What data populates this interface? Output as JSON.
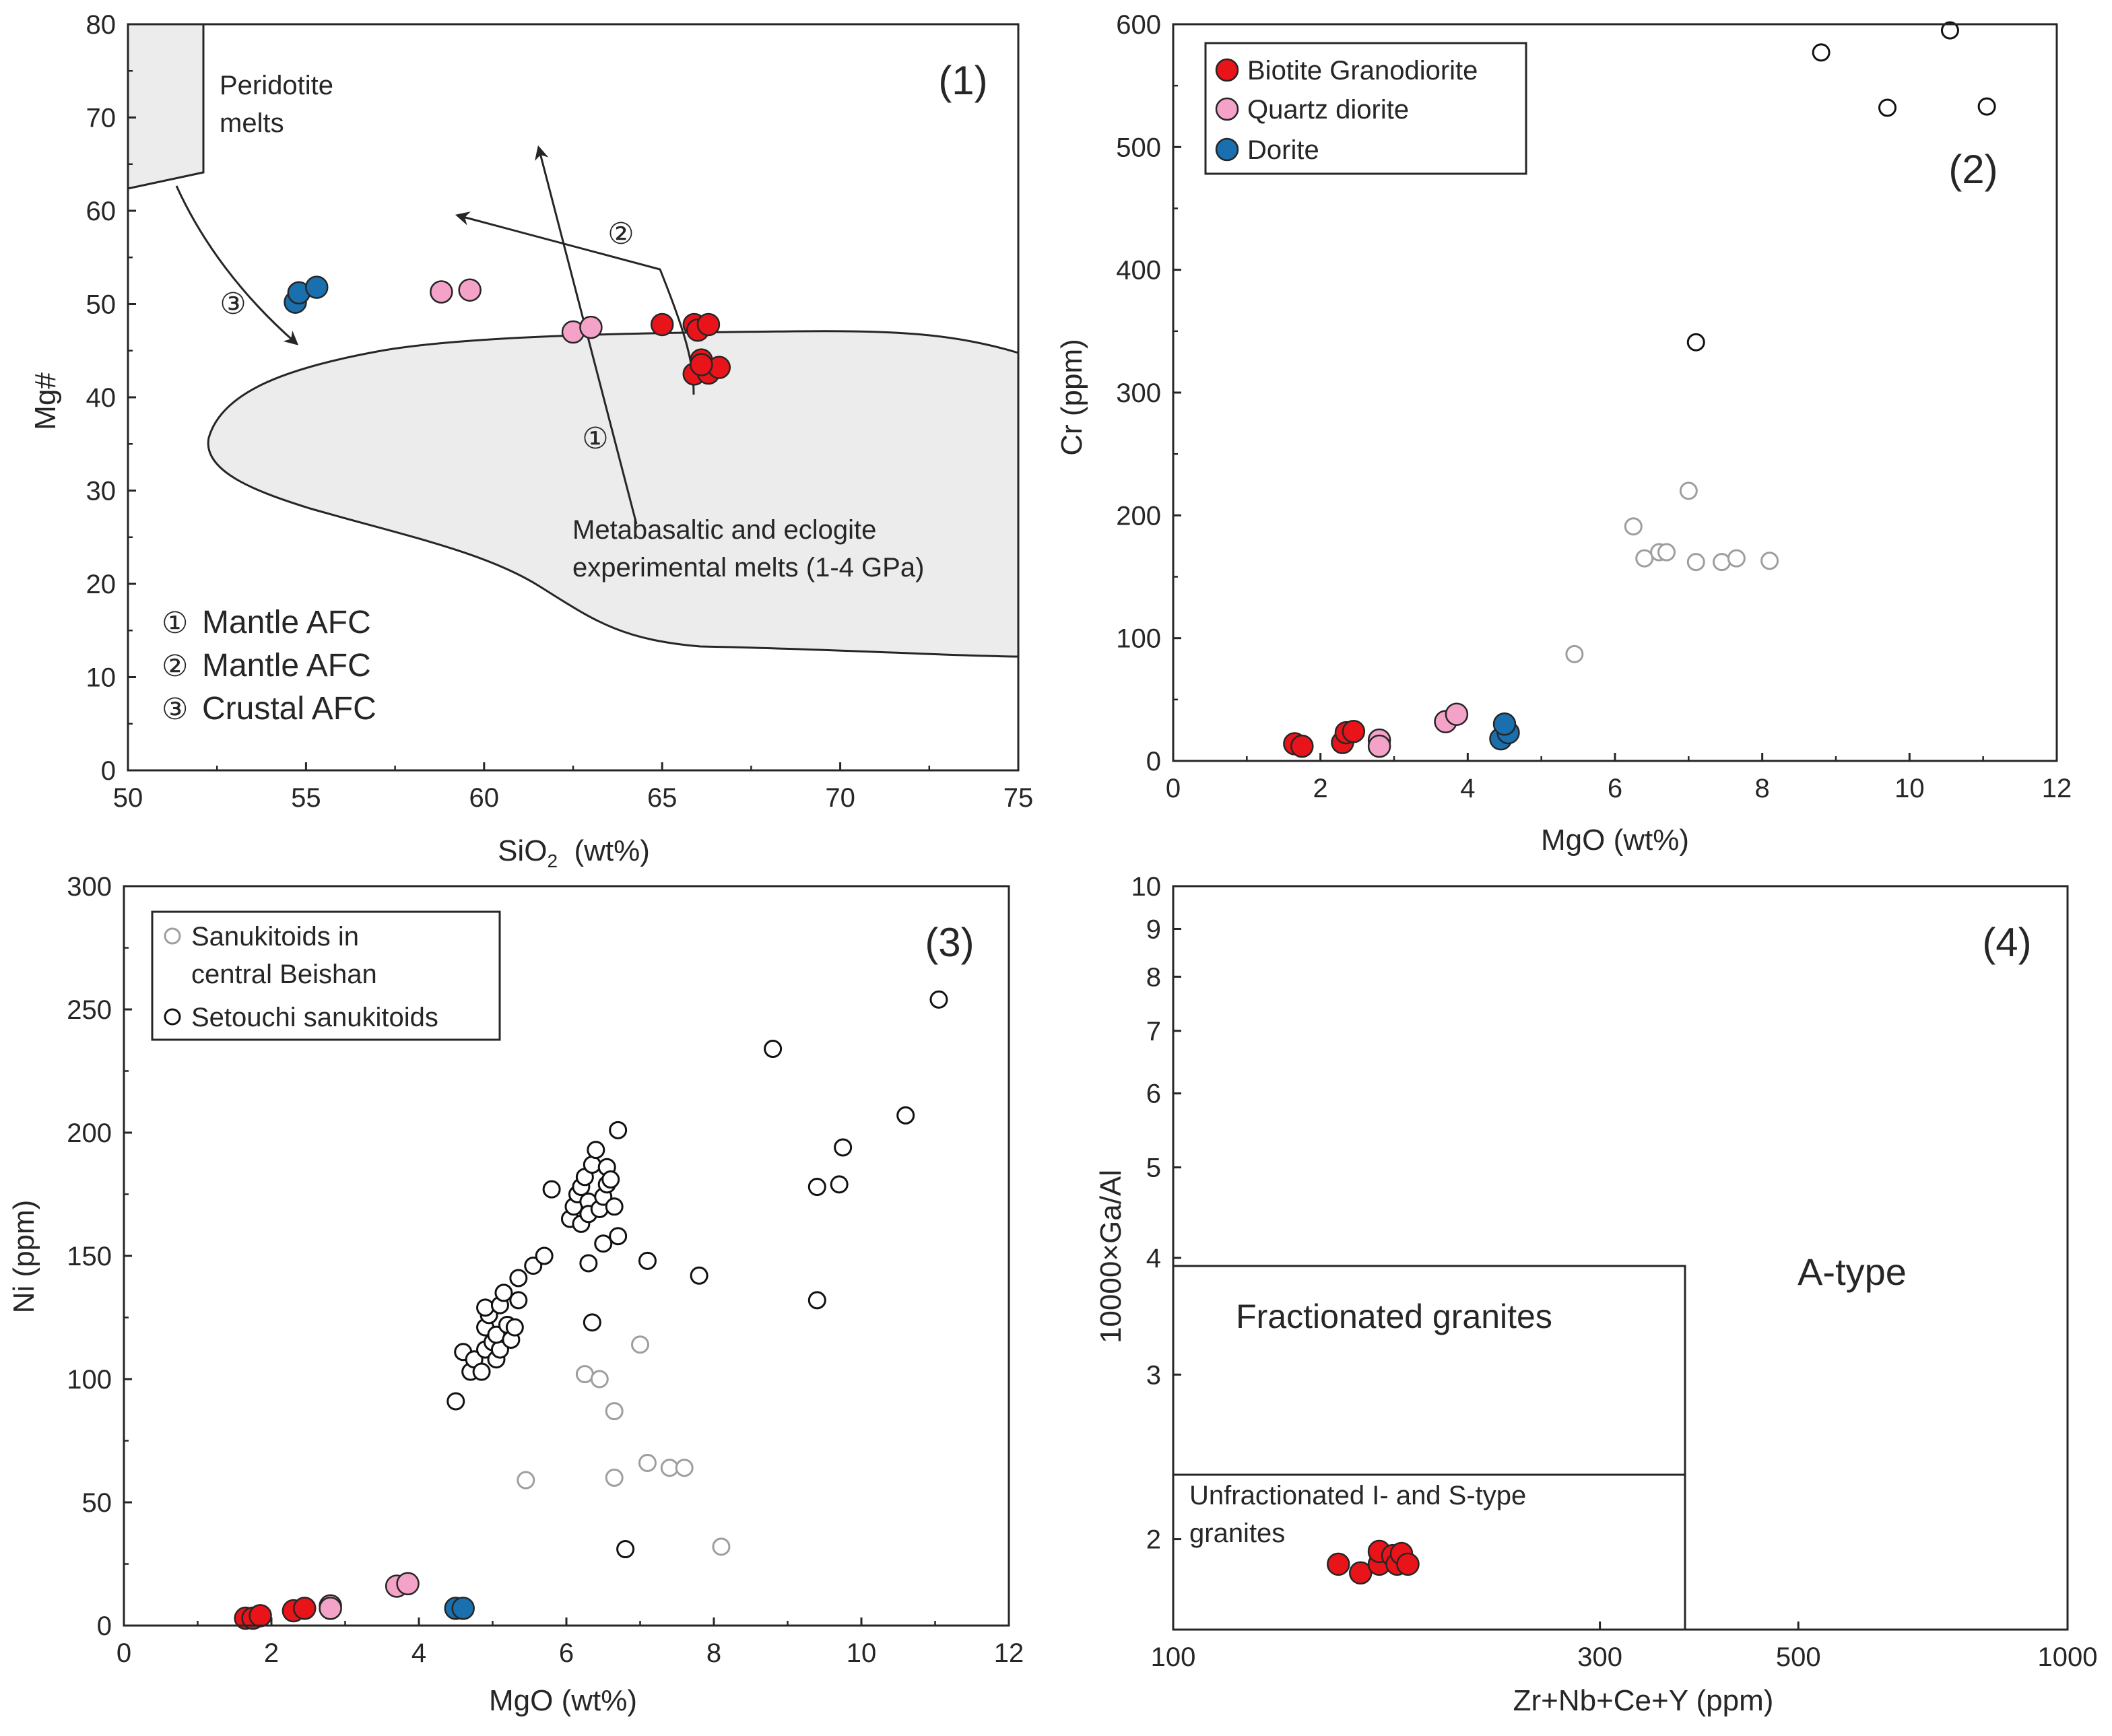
{
  "colors": {
    "biotite": "#e8141a",
    "quartz": "#f5a2c8",
    "dorite": "#1a6fae",
    "beishan": "#9e9e9e",
    "setouchi": "#111111",
    "field": "#ececec"
  },
  "chart_data": [
    {
      "id": "p1",
      "type": "scatter",
      "label": "(1)",
      "xlabel": "SiO",
      "xlabel_sub": "2",
      "xlabel_tail": "(wt%)",
      "ylabel": "Mg#",
      "xlim": [
        50,
        75
      ],
      "ylim": [
        0,
        80
      ],
      "xticks": [
        50,
        55,
        60,
        65,
        70,
        75
      ],
      "yticks": [
        0,
        10,
        20,
        30,
        40,
        50,
        60,
        70,
        80
      ],
      "field_labels": {
        "peridotite": [
          "Peridotite",
          "melts"
        ],
        "metabasalt": [
          "Metabasaltic and eclogite",
          "experimental melts (1-4 GPa)"
        ]
      },
      "arrow_markers": [
        "①",
        "②",
        "③"
      ],
      "legend": [
        {
          "marker": "①",
          "text": "Mantle AFC"
        },
        {
          "marker": "②",
          "text": "Mantle AFC"
        },
        {
          "marker": "③",
          "text": "Crustal AFC"
        }
      ],
      "series": [
        {
          "name": "Biotite Granodiorite",
          "points": [
            [
              65.0,
              47.8
            ],
            [
              65.9,
              47.8
            ],
            [
              66.0,
              47.2
            ],
            [
              66.3,
              47.8
            ],
            [
              66.1,
              44.0
            ],
            [
              65.9,
              42.5
            ],
            [
              66.3,
              42.6
            ],
            [
              66.6,
              43.2
            ],
            [
              66.1,
              43.5
            ]
          ]
        },
        {
          "name": "Quartz diorite",
          "points": [
            [
              58.8,
              51.3
            ],
            [
              59.6,
              51.5
            ],
            [
              62.5,
              47.0
            ],
            [
              63.0,
              47.5
            ]
          ]
        },
        {
          "name": "Dorite",
          "points": [
            [
              54.7,
              50.2
            ],
            [
              54.8,
              51.2
            ],
            [
              55.3,
              51.8
            ]
          ]
        }
      ]
    },
    {
      "id": "p2",
      "type": "scatter",
      "label": "(2)",
      "xlabel": "MgO (wt%)",
      "ylabel": "Cr (ppm)",
      "xlim": [
        0,
        12
      ],
      "ylim": [
        0,
        600
      ],
      "xticks": [
        0,
        2,
        4,
        6,
        8,
        10,
        12
      ],
      "yticks": [
        0,
        100,
        200,
        300,
        400,
        500,
        600
      ],
      "legend": [
        "Biotite Granodiorite",
        "Quartz diorite",
        "Dorite"
      ],
      "series": [
        {
          "name": "Biotite Granodiorite",
          "points": [
            [
              1.65,
              14
            ],
            [
              1.75,
              12
            ],
            [
              2.3,
              15
            ],
            [
              2.35,
              23
            ],
            [
              2.45,
              24
            ]
          ]
        },
        {
          "name": "Quartz diorite",
          "points": [
            [
              2.8,
              17
            ],
            [
              2.8,
              12
            ],
            [
              3.7,
              32
            ],
            [
              3.85,
              38
            ]
          ]
        },
        {
          "name": "Dorite",
          "points": [
            [
              4.45,
              18
            ],
            [
              4.55,
              23
            ],
            [
              4.5,
              30
            ]
          ]
        },
        {
          "name": "Sanukitoids in central Beishan",
          "points": [
            [
              5.45,
              87
            ],
            [
              6.25,
              191
            ],
            [
              6.4,
              165
            ],
            [
              6.6,
              170
            ],
            [
              6.7,
              170
            ],
            [
              7.0,
              220
            ],
            [
              7.1,
              162
            ],
            [
              7.45,
              162
            ],
            [
              7.65,
              165
            ],
            [
              8.1,
              163
            ]
          ]
        },
        {
          "name": "Setouchi sanukitoids",
          "points": [
            [
              7.1,
              341
            ],
            [
              8.8,
              577
            ],
            [
              9.7,
              532
            ],
            [
              10.55,
              595
            ],
            [
              11.05,
              533
            ]
          ]
        }
      ]
    },
    {
      "id": "p3",
      "type": "scatter",
      "label": "(3)",
      "xlabel": "MgO (wt%)",
      "ylabel": "Ni (ppm)",
      "xlim": [
        0,
        12
      ],
      "ylim": [
        0,
        300
      ],
      "xticks": [
        0,
        2,
        4,
        6,
        8,
        10,
        12
      ],
      "yticks": [
        0,
        50,
        100,
        150,
        200,
        250,
        300
      ],
      "legend": [
        {
          "key": "beishan",
          "lines": [
            "Sanukitoids in",
            "central Beishan"
          ]
        },
        {
          "key": "setouchi",
          "lines": [
            "Setouchi sanukitoids"
          ]
        }
      ],
      "series": [
        {
          "name": "Biotite Granodiorite",
          "points": [
            [
              1.65,
              3
            ],
            [
              1.75,
              3
            ],
            [
              1.85,
              4
            ],
            [
              2.3,
              6
            ],
            [
              2.45,
              7
            ]
          ]
        },
        {
          "name": "Quartz diorite",
          "points": [
            [
              2.8,
              8
            ],
            [
              2.8,
              7
            ],
            [
              3.7,
              16
            ],
            [
              3.85,
              17
            ]
          ]
        },
        {
          "name": "Dorite",
          "points": [
            [
              4.5,
              7
            ],
            [
              4.6,
              7
            ]
          ]
        },
        {
          "name": "Sanukitoids in central Beishan",
          "points": [
            [
              5.45,
              59
            ],
            [
              6.25,
              102
            ],
            [
              6.45,
              100
            ],
            [
              6.65,
              87
            ],
            [
              6.65,
              60
            ],
            [
              7.0,
              114
            ],
            [
              7.1,
              66
            ],
            [
              7.4,
              64
            ],
            [
              7.6,
              64
            ],
            [
              8.1,
              32
            ]
          ]
        },
        {
          "name": "Setouchi sanukitoids",
          "points": [
            [
              4.5,
              91
            ],
            [
              4.6,
              111
            ],
            [
              4.7,
              103
            ],
            [
              4.75,
              108
            ],
            [
              4.85,
              103
            ],
            [
              4.9,
              112
            ],
            [
              4.9,
              121
            ],
            [
              4.95,
              126
            ],
            [
              4.9,
              129
            ],
            [
              5.0,
              115
            ],
            [
              5.05,
              108
            ],
            [
              5.1,
              112
            ],
            [
              5.05,
              118
            ],
            [
              5.1,
              130
            ],
            [
              5.15,
              135
            ],
            [
              5.2,
              122
            ],
            [
              5.25,
              116
            ],
            [
              5.3,
              121
            ],
            [
              5.35,
              132
            ],
            [
              5.35,
              141
            ],
            [
              5.55,
              146
            ],
            [
              5.7,
              150
            ],
            [
              5.8,
              177
            ],
            [
              6.05,
              165
            ],
            [
              6.1,
              170
            ],
            [
              6.15,
              175
            ],
            [
              6.2,
              163
            ],
            [
              6.2,
              178
            ],
            [
              6.25,
              182
            ],
            [
              6.3,
              172
            ],
            [
              6.3,
              147
            ],
            [
              6.3,
              167
            ],
            [
              6.35,
              187
            ],
            [
              6.4,
              193
            ],
            [
              6.45,
              169
            ],
            [
              6.5,
              174
            ],
            [
              6.5,
              155
            ],
            [
              6.55,
              179
            ],
            [
              6.55,
              186
            ],
            [
              6.6,
              181
            ],
            [
              6.65,
              170
            ],
            [
              6.7,
              158
            ],
            [
              6.7,
              201
            ],
            [
              6.35,
              123
            ],
            [
              6.8,
              31
            ],
            [
              7.1,
              148
            ],
            [
              7.8,
              142
            ],
            [
              8.8,
              234
            ],
            [
              9.4,
              132
            ],
            [
              9.4,
              178
            ],
            [
              9.7,
              179
            ],
            [
              9.75,
              194
            ],
            [
              10.6,
              207
            ],
            [
              11.05,
              254
            ]
          ]
        }
      ]
    },
    {
      "id": "p4",
      "type": "scatter",
      "label": "(4)",
      "xlabel": "Zr+Nb+Ce+Y (ppm)",
      "ylabel": "10000×Ga/Al",
      "xscale": "log",
      "yscale": "log",
      "xlim": [
        100,
        1000
      ],
      "ylim": [
        1.6,
        10
      ],
      "xticks": [
        100,
        300,
        500,
        1000
      ],
      "yticks": [
        2,
        3,
        4,
        5,
        6,
        7,
        8,
        9,
        10
      ],
      "regions": [
        {
          "name": "A-type",
          "text": "A-type"
        },
        {
          "name": "Fractionated granites",
          "text": "Fractionated granites"
        },
        {
          "name": "Unfractionated I- and S-type granites",
          "lines": [
            "Unfractionated I- and S-type",
            "granites"
          ]
        }
      ],
      "series": [
        {
          "name": "Biotite Granodiorite",
          "points": [
            [
              153,
              1.88
            ],
            [
              162,
              1.84
            ],
            [
              170,
              1.88
            ],
            [
              170,
              1.94
            ],
            [
              176,
              1.92
            ],
            [
              178,
              1.88
            ],
            [
              180,
              1.93
            ],
            [
              183,
              1.88
            ]
          ]
        }
      ]
    }
  ]
}
